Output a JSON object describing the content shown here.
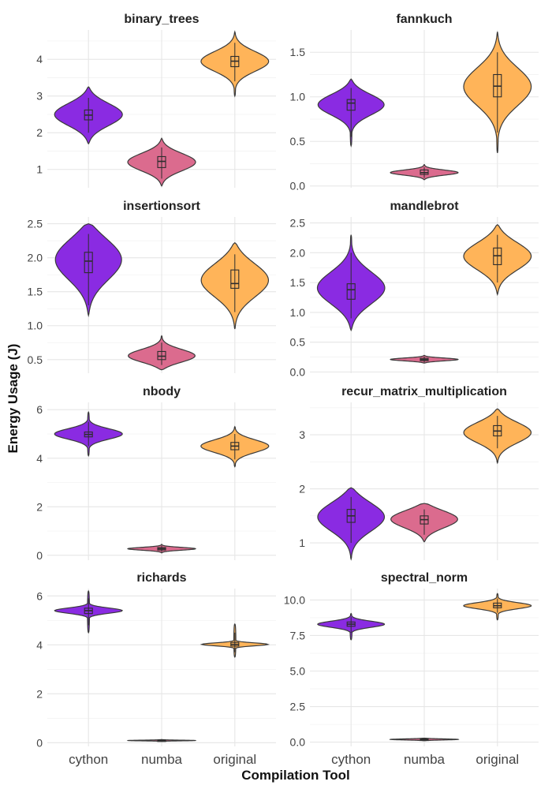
{
  "chart_data": {
    "type": "violin",
    "xlabel": "Compilation Tool",
    "ylabel": "Energy Usage (J)",
    "categories": [
      "cython",
      "numba",
      "original"
    ],
    "colors": {
      "cython": "#8a2be2",
      "numba": "#db6b8e",
      "original": "#ffb459"
    },
    "panels": [
      {
        "title": "binary_trees",
        "ylim": [
          0.5,
          4.8
        ],
        "ticks": [
          1,
          2,
          3,
          4
        ],
        "tick_labels": [
          "1",
          "2",
          "3",
          "4"
        ],
        "groups": [
          {
            "category": "cython",
            "min": 1.7,
            "max": 3.25,
            "mode": 2.5,
            "spread": 0.32,
            "q1": 2.35,
            "median": 2.48,
            "q3": 2.62,
            "wlo": 2.0,
            "whi": 2.95
          },
          {
            "category": "numba",
            "min": 0.55,
            "max": 1.85,
            "mode": 1.2,
            "spread": 0.25,
            "q1": 1.05,
            "median": 1.22,
            "q3": 1.35,
            "wlo": 0.75,
            "whi": 1.6
          },
          {
            "category": "original",
            "min": 3.0,
            "max": 4.75,
            "mode": 3.95,
            "spread": 0.28,
            "q1": 3.8,
            "median": 3.95,
            "q3": 4.08,
            "wlo": 3.4,
            "whi": 4.45
          }
        ]
      },
      {
        "title": "fannkuch",
        "ylim": [
          -0.02,
          1.75
        ],
        "ticks": [
          0,
          0.5,
          1,
          1.5
        ],
        "tick_labels": [
          "0.0",
          "0.5",
          "1.0",
          "1.5"
        ],
        "groups": [
          {
            "category": "cython",
            "min": 0.45,
            "max": 1.2,
            "mode": 0.92,
            "spread": 0.12,
            "q1": 0.85,
            "median": 0.93,
            "q3": 0.97,
            "wlo": 0.55,
            "whi": 1.1
          },
          {
            "category": "numba",
            "min": 0.07,
            "max": 0.24,
            "mode": 0.15,
            "spread": 0.03,
            "q1": 0.13,
            "median": 0.15,
            "q3": 0.18,
            "wlo": 0.09,
            "whi": 0.21
          },
          {
            "category": "original",
            "min": 0.37,
            "max": 1.73,
            "mode": 1.12,
            "spread": 0.22,
            "q1": 1.0,
            "median": 1.12,
            "q3": 1.25,
            "wlo": 0.6,
            "whi": 1.5
          }
        ]
      },
      {
        "title": "insertionsort",
        "ylim": [
          0.3,
          2.6
        ],
        "ticks": [
          0.5,
          1,
          1.5,
          2,
          2.5
        ],
        "tick_labels": [
          "0.5",
          "1.0",
          "1.5",
          "2.0",
          "2.5"
        ],
        "groups": [
          {
            "category": "cython",
            "min": 1.15,
            "max": 2.5,
            "mode": 2.0,
            "spread": 0.32,
            "q1": 1.78,
            "median": 1.95,
            "q3": 2.08,
            "wlo": 1.3,
            "whi": 2.35
          },
          {
            "category": "numba",
            "min": 0.35,
            "max": 0.85,
            "mode": 0.55,
            "spread": 0.1,
            "q1": 0.5,
            "median": 0.55,
            "q3": 0.62,
            "wlo": 0.42,
            "whi": 0.75
          },
          {
            "category": "original",
            "min": 0.95,
            "max": 2.22,
            "mode": 1.68,
            "spread": 0.26,
            "q1": 1.55,
            "median": 1.62,
            "q3": 1.82,
            "wlo": 1.2,
            "whi": 2.05
          }
        ]
      },
      {
        "title": "mandlebrot",
        "ylim": [
          -0.02,
          2.6
        ],
        "ticks": [
          0,
          0.5,
          1,
          1.5,
          2,
          2.5
        ],
        "tick_labels": [
          "0.0",
          "0.5",
          "1.0",
          "1.5",
          "2.0",
          "2.5"
        ],
        "groups": [
          {
            "category": "cython",
            "min": 0.7,
            "max": 2.3,
            "mode": 1.4,
            "spread": 0.28,
            "q1": 1.22,
            "median": 1.38,
            "q3": 1.48,
            "wlo": 0.9,
            "whi": 2.0
          },
          {
            "category": "numba",
            "min": 0.15,
            "max": 0.28,
            "mode": 0.21,
            "spread": 0.025,
            "q1": 0.19,
            "median": 0.21,
            "q3": 0.23,
            "wlo": 0.16,
            "whi": 0.26
          },
          {
            "category": "original",
            "min": 1.3,
            "max": 2.47,
            "mode": 1.95,
            "spread": 0.24,
            "q1": 1.8,
            "median": 1.95,
            "q3": 2.08,
            "wlo": 1.5,
            "whi": 2.3
          }
        ]
      },
      {
        "title": "nbody",
        "ylim": [
          -0.2,
          6.3
        ],
        "ticks": [
          0,
          2,
          4,
          6
        ],
        "tick_labels": [
          "0",
          "2",
          "4",
          "6"
        ],
        "groups": [
          {
            "category": "cython",
            "min": 4.1,
            "max": 5.9,
            "mode": 5.0,
            "spread": 0.22,
            "q1": 4.88,
            "median": 4.98,
            "q3": 5.08,
            "wlo": 4.5,
            "whi": 5.5
          },
          {
            "category": "numba",
            "min": 0.1,
            "max": 0.45,
            "mode": 0.27,
            "spread": 0.06,
            "q1": 0.22,
            "median": 0.27,
            "q3": 0.32,
            "wlo": 0.14,
            "whi": 0.4
          },
          {
            "category": "original",
            "min": 3.65,
            "max": 5.3,
            "mode": 4.5,
            "spread": 0.27,
            "q1": 4.35,
            "median": 4.5,
            "q3": 4.65,
            "wlo": 3.95,
            "whi": 5.0
          }
        ]
      },
      {
        "title": "recur_matrix_multiplication",
        "ylim": [
          0.68,
          3.6
        ],
        "ticks": [
          1,
          2,
          3
        ],
        "tick_labels": [
          "1",
          "2",
          "3"
        ],
        "groups": [
          {
            "category": "cython",
            "min": 0.7,
            "max": 2.02,
            "mode": 1.5,
            "spread": 0.28,
            "q1": 1.38,
            "median": 1.5,
            "q3": 1.62,
            "wlo": 1.0,
            "whi": 1.85
          },
          {
            "category": "numba",
            "min": 1.02,
            "max": 1.73,
            "mode": 1.45,
            "spread": 0.17,
            "q1": 1.35,
            "median": 1.43,
            "q3": 1.5,
            "wlo": 1.15,
            "whi": 1.62
          },
          {
            "category": "original",
            "min": 2.48,
            "max": 3.48,
            "mode": 3.05,
            "spread": 0.2,
            "q1": 2.98,
            "median": 3.07,
            "q3": 3.17,
            "wlo": 2.75,
            "whi": 3.35
          }
        ]
      },
      {
        "title": "richards",
        "ylim": [
          -0.15,
          6.3
        ],
        "ticks": [
          0,
          2,
          4,
          6
        ],
        "tick_labels": [
          "0",
          "2",
          "4",
          "6"
        ],
        "groups": [
          {
            "category": "cython",
            "min": 4.5,
            "max": 6.2,
            "mode": 5.4,
            "spread": 0.11,
            "q1": 5.28,
            "median": 5.4,
            "q3": 5.5,
            "wlo": 4.8,
            "whi": 5.9
          },
          {
            "category": "numba",
            "min": 0.06,
            "max": 0.13,
            "mode": 0.09,
            "spread": 0.015,
            "q1": 0.08,
            "median": 0.09,
            "q3": 0.1,
            "wlo": 0.07,
            "whi": 0.12
          },
          {
            "category": "original",
            "min": 3.5,
            "max": 4.85,
            "mode": 4.02,
            "spread": 0.06,
            "q1": 3.95,
            "median": 4.02,
            "q3": 4.1,
            "wlo": 3.7,
            "whi": 4.5
          }
        ]
      },
      {
        "title": "spectral_norm",
        "ylim": [
          -0.3,
          10.8
        ],
        "ticks": [
          0,
          2.5,
          5,
          7.5,
          10
        ],
        "tick_labels": [
          "0.0",
          "2.5",
          "5.0",
          "7.5",
          "10.0"
        ],
        "groups": [
          {
            "category": "cython",
            "min": 7.2,
            "max": 9.05,
            "mode": 8.3,
            "spread": 0.22,
            "q1": 8.15,
            "median": 8.3,
            "q3": 8.45,
            "wlo": 7.7,
            "whi": 8.8
          },
          {
            "category": "numba",
            "min": 0.1,
            "max": 0.28,
            "mode": 0.19,
            "spread": 0.04,
            "q1": 0.16,
            "median": 0.19,
            "q3": 0.22,
            "wlo": 0.12,
            "whi": 0.25
          },
          {
            "category": "original",
            "min": 8.6,
            "max": 10.45,
            "mode": 9.6,
            "spread": 0.22,
            "q1": 9.45,
            "median": 9.6,
            "q3": 9.78,
            "wlo": 9.1,
            "whi": 10.1
          }
        ]
      }
    ]
  }
}
